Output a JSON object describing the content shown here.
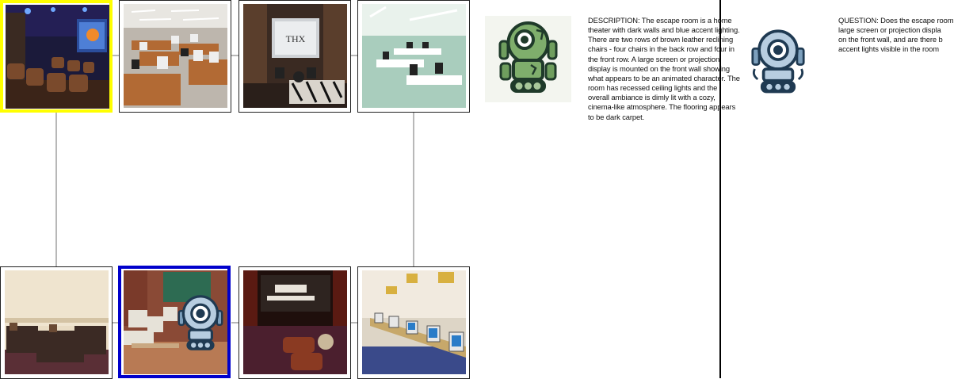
{
  "grid": {
    "tiles": [
      {
        "name": "home-theater-blue-lights",
        "selected": "yellow"
      },
      {
        "name": "computer-lab-rows",
        "selected": null
      },
      {
        "name": "theater-thx-screen",
        "selected": null
      },
      {
        "name": "computer-lab-green",
        "selected": null
      },
      {
        "name": "lecture-seats-room",
        "selected": null
      },
      {
        "name": "computer-classroom-with-bot",
        "selected": "blue"
      },
      {
        "name": "cinema-dark-red-seats",
        "selected": null
      },
      {
        "name": "computer-lab-long-desk",
        "selected": null
      }
    ]
  },
  "thx_label": "THX",
  "description": {
    "text": "DESCRIPTION: The escape room is a home theater with dark walls and blue accent lighting. There are two rows of brown leather reclining chairs - four chairs in the back row and four in the front row. A large screen or projection display is mounted on the front wall showing what appears to be an animated character. The room has recessed ceiling lights and the overall ambiance is dimly lit with a cozy, cinema-like atmosphere. The flooring appears to be dark carpet."
  },
  "question": {
    "lines": [
      "QUESTION: Does the escape room",
      "large screen or projection displa",
      "on the front wall, and are there b",
      "accent lights visible in the room"
    ]
  },
  "colors": {
    "selected_primary": "#ffff00",
    "selected_secondary": "#0000cc",
    "bot_green": "#6f9e5e",
    "bot_blue": "#a9c4dc"
  }
}
